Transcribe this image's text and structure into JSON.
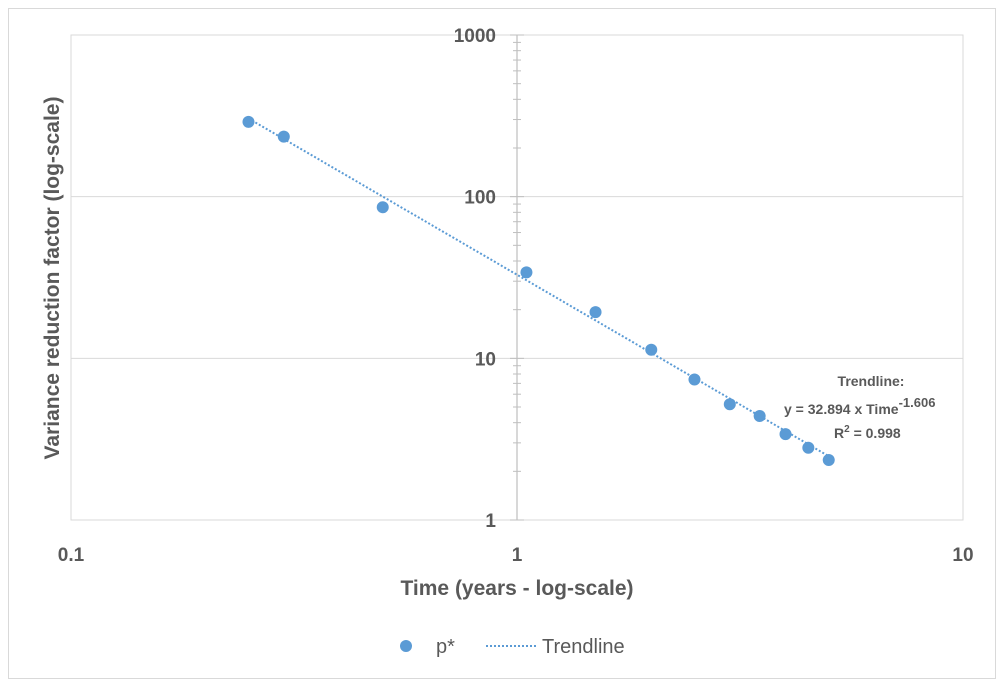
{
  "chart_data": {
    "type": "scatter",
    "title": "",
    "xlabel": "Time (years - log-scale)",
    "ylabel": "Variance reduction factor (log-scale)",
    "x_scale": "log",
    "y_scale": "log",
    "xlim": [
      0.1,
      10
    ],
    "ylim": [
      1,
      1000
    ],
    "x_ticks": [
      "0.1",
      "1",
      "10"
    ],
    "y_ticks": [
      "1",
      "10",
      "100",
      "1000"
    ],
    "grid": true,
    "legend_position": "bottom",
    "series": [
      {
        "name": "p*",
        "marker": "circle",
        "color": "#5b9bd5",
        "x": [
          0.25,
          0.3,
          0.5,
          1.05,
          1.5,
          2.0,
          2.5,
          3.0,
          3.5,
          4.0,
          4.5,
          5.0
        ],
        "y": [
          290,
          235,
          86,
          34,
          19.3,
          11.3,
          7.4,
          5.2,
          4.4,
          3.4,
          2.8,
          2.35
        ]
      }
    ],
    "trendline": {
      "name": "Trendline",
      "style": "dotted",
      "color": "#5b9bd5",
      "coefficient": 32.894,
      "exponent": -1.606,
      "x_range": [
        0.25,
        5.0
      ]
    },
    "annotation": {
      "line1": "Trendline:",
      "equation": "y = 32.894 x Time",
      "exponent": "-1.606",
      "r_label": "R",
      "r_power": "2",
      "r_value": " = 0.998"
    }
  }
}
